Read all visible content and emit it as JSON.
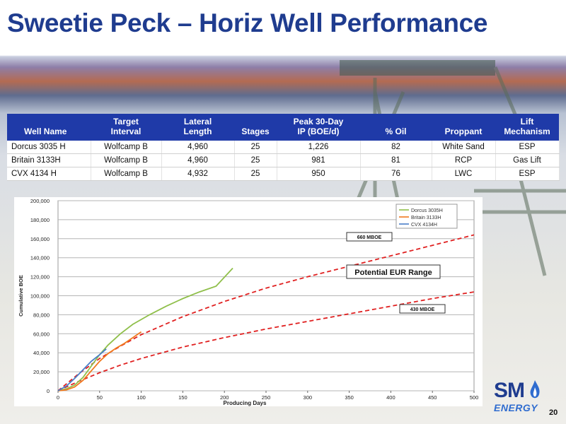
{
  "slide": {
    "title": "Sweetie Peck – Horiz Well Performance",
    "page_number": "20"
  },
  "table": {
    "headers": [
      "Well Name",
      "Target\nInterval",
      "Lateral\nLength",
      "Stages",
      "Peak 30-Day\nIP (BOE/d)",
      "% Oil",
      "Proppant",
      "Lift\nMechanism"
    ],
    "rows": [
      [
        "Dorcus 3035 H",
        "Wolfcamp B",
        "4,960",
        "25",
        "1,226",
        "82",
        "White Sand",
        "ESP"
      ],
      [
        "Britain 3133H",
        "Wolfcamp B",
        "4,960",
        "25",
        "981",
        "81",
        "RCP",
        "Gas Lift"
      ],
      [
        "CVX 4134 H",
        "Wolfcamp B",
        "4,932",
        "25",
        "950",
        "76",
        "LWC",
        "ESP"
      ]
    ]
  },
  "logo": {
    "text": "SM",
    "subtext": "ENERGY"
  },
  "colors": {
    "title": "#1f3c8f",
    "table_header": "#1f3aa8",
    "dorcus": "#8fbf4a",
    "britain": "#f07a1e",
    "cvx": "#4a7fc8",
    "eur_range": "#e02020"
  },
  "chart_data": {
    "type": "line",
    "xlabel": "Producing Days",
    "ylabel": "Cumulative BOE",
    "xlim": [
      0,
      500
    ],
    "ylim": [
      0,
      200000
    ],
    "x_ticks": [
      "0",
      "50",
      "100",
      "150",
      "200",
      "250",
      "300",
      "350",
      "400",
      "450",
      "500"
    ],
    "y_ticks": [
      "0",
      "20,000",
      "40,000",
      "60,000",
      "80,000",
      "100,000",
      "120,000",
      "140,000",
      "160,000",
      "180,000",
      "200,000"
    ],
    "grid": true,
    "legend_position": "top-right",
    "series": [
      {
        "name": "Dorcus 3035H",
        "color": "#8fbf4a",
        "x": [
          0,
          10,
          20,
          30,
          40,
          50,
          60,
          75,
          90,
          110,
          130,
          150,
          170,
          190,
          210
        ],
        "y": [
          0,
          2000,
          6000,
          14000,
          26000,
          38000,
          48000,
          60000,
          70000,
          80000,
          89000,
          97000,
          104000,
          110000,
          129000
        ]
      },
      {
        "name": "Britain 3133H",
        "color": "#f07a1e",
        "x": [
          0,
          10,
          20,
          30,
          40,
          50,
          60,
          70,
          80,
          90,
          100
        ],
        "y": [
          0,
          1000,
          4000,
          11000,
          21000,
          31000,
          39000,
          45000,
          50000,
          56000,
          62000
        ]
      },
      {
        "name": "CVX 4134H",
        "color": "#4a7fc8",
        "x": [
          0,
          10,
          20,
          30,
          40,
          50,
          58
        ],
        "y": [
          0,
          5000,
          13000,
          22000,
          31000,
          38000,
          44000
        ]
      }
    ],
    "eur_lines": [
      {
        "label": "660 MBOE",
        "color": "#e02020",
        "x": [
          0,
          25,
          50,
          75,
          100,
          150,
          200,
          250,
          300,
          350,
          400,
          450,
          500
        ],
        "y": [
          0,
          18000,
          34000,
          47000,
          59000,
          78000,
          94000,
          108000,
          120000,
          131000,
          142000,
          153000,
          164000
        ]
      },
      {
        "label": "430 MBOE",
        "color": "#e02020",
        "x": [
          0,
          25,
          50,
          75,
          100,
          150,
          200,
          250,
          300,
          350,
          400,
          450,
          500
        ],
        "y": [
          0,
          10000,
          19000,
          27000,
          34000,
          46000,
          56000,
          65000,
          73000,
          81000,
          89000,
          97000,
          104000
        ]
      }
    ],
    "annotation": "Potential EUR Range"
  }
}
